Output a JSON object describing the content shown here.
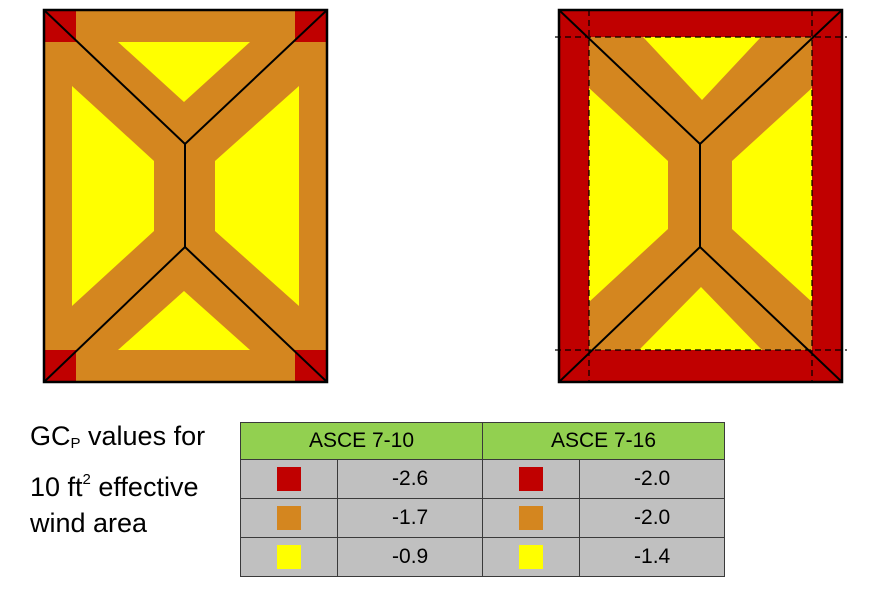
{
  "colors": {
    "corner": "#c00000",
    "edge": "#d4861f",
    "interior": "#ffff00",
    "header": "#92d050",
    "cell": "#c0c0c0"
  },
  "caption": {
    "gc": "GC",
    "gc_sub": "P",
    "rest_line1": " values for",
    "line2_pre": "10 ft",
    "line2_sup": "2",
    "line2_post": " effective",
    "line3": "wind area"
  },
  "table": {
    "headers": [
      "ASCE 7-10",
      "ASCE 7-16"
    ],
    "rows": [
      {
        "zone": "corner",
        "asce_7_10": "-2.6",
        "asce_7_16": "-2.0"
      },
      {
        "zone": "edge",
        "asce_7_10": "-1.7",
        "asce_7_16": "-2.0"
      },
      {
        "zone": "interior",
        "asce_7_10": "-0.9",
        "asce_7_16": "-1.4"
      }
    ]
  }
}
